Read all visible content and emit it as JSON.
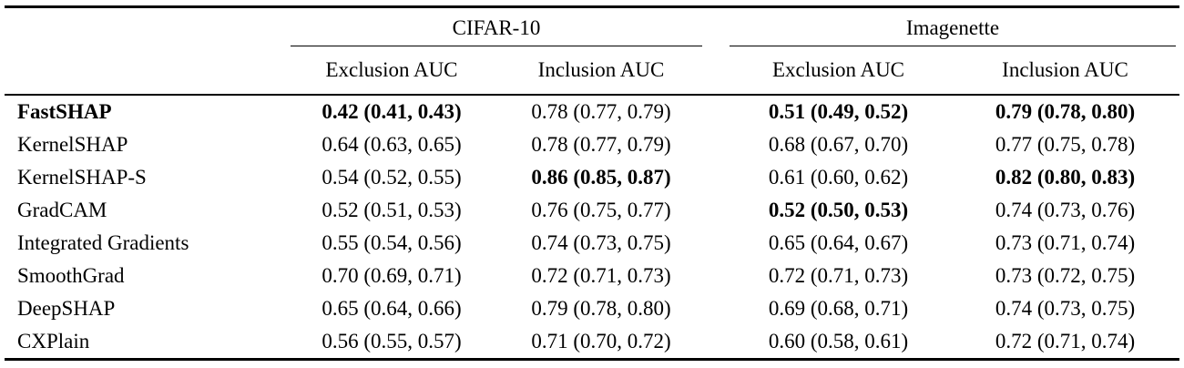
{
  "table": {
    "group_headers": [
      "CIFAR-10",
      "Imagenette"
    ],
    "sub_headers": [
      "Exclusion AUC",
      "Inclusion AUC",
      "Exclusion AUC",
      "Inclusion AUC"
    ],
    "rows": [
      {
        "method": "FastSHAP",
        "method_bold": true,
        "cells": [
          {
            "text": "0.42 (0.41, 0.43)",
            "bold": true
          },
          {
            "text": "0.78 (0.77, 0.79)",
            "bold": false
          },
          {
            "text": "0.51 (0.49, 0.52)",
            "bold": true
          },
          {
            "text": "0.79 (0.78, 0.80)",
            "bold": true
          }
        ]
      },
      {
        "method": "KernelSHAP",
        "method_bold": false,
        "cells": [
          {
            "text": "0.64 (0.63, 0.65)",
            "bold": false
          },
          {
            "text": "0.78 (0.77, 0.79)",
            "bold": false
          },
          {
            "text": "0.68 (0.67, 0.70)",
            "bold": false
          },
          {
            "text": "0.77 (0.75, 0.78)",
            "bold": false
          }
        ]
      },
      {
        "method": "KernelSHAP-S",
        "method_bold": false,
        "cells": [
          {
            "text": "0.54 (0.52, 0.55)",
            "bold": false
          },
          {
            "text": "0.86 (0.85, 0.87)",
            "bold": true
          },
          {
            "text": "0.61 (0.60, 0.62)",
            "bold": false
          },
          {
            "text": "0.82 (0.80, 0.83)",
            "bold": true
          }
        ]
      },
      {
        "method": "GradCAM",
        "method_bold": false,
        "cells": [
          {
            "text": "0.52 (0.51, 0.53)",
            "bold": false
          },
          {
            "text": "0.76 (0.75, 0.77)",
            "bold": false
          },
          {
            "text": "0.52 (0.50, 0.53)",
            "bold": true
          },
          {
            "text": "0.74 (0.73, 0.76)",
            "bold": false
          }
        ]
      },
      {
        "method": "Integrated Gradients",
        "method_bold": false,
        "cells": [
          {
            "text": "0.55 (0.54, 0.56)",
            "bold": false
          },
          {
            "text": "0.74 (0.73, 0.75)",
            "bold": false
          },
          {
            "text": "0.65 (0.64, 0.67)",
            "bold": false
          },
          {
            "text": "0.73 (0.71, 0.74)",
            "bold": false
          }
        ]
      },
      {
        "method": "SmoothGrad",
        "method_bold": false,
        "cells": [
          {
            "text": "0.70 (0.69, 0.71)",
            "bold": false
          },
          {
            "text": "0.72 (0.71, 0.73)",
            "bold": false
          },
          {
            "text": "0.72 (0.71, 0.73)",
            "bold": false
          },
          {
            "text": "0.73 (0.72, 0.75)",
            "bold": false
          }
        ]
      },
      {
        "method": "DeepSHAP",
        "method_bold": false,
        "cells": [
          {
            "text": "0.65 (0.64, 0.66)",
            "bold": false
          },
          {
            "text": "0.79 (0.78, 0.80)",
            "bold": false
          },
          {
            "text": "0.69 (0.68, 0.71)",
            "bold": false
          },
          {
            "text": "0.74 (0.73, 0.75)",
            "bold": false
          }
        ]
      },
      {
        "method": "CXPlain",
        "method_bold": false,
        "cells": [
          {
            "text": "0.56 (0.55, 0.57)",
            "bold": false
          },
          {
            "text": "0.71 (0.70, 0.72)",
            "bold": false
          },
          {
            "text": "0.60 (0.58, 0.61)",
            "bold": false
          },
          {
            "text": "0.72 (0.71, 0.74)",
            "bold": false
          }
        ]
      }
    ]
  }
}
